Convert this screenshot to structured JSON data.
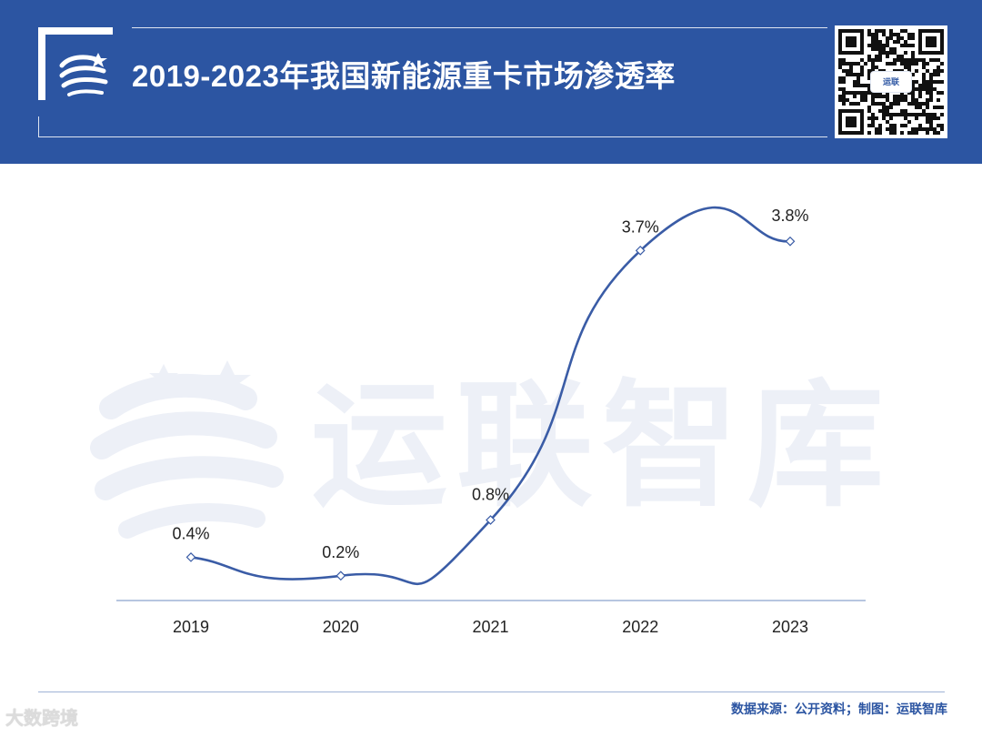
{
  "header": {
    "title": "2019-2023年我国新能源重卡市场渗透率",
    "logo_icon": "brand-swoosh-icon",
    "qr_label": "运联"
  },
  "watermark": {
    "text": "运联智库"
  },
  "footer": {
    "source": "数据来源：公开资料；制图：运联智库",
    "corner_mark": "大数跨境"
  },
  "colors": {
    "brand": "#2c55a2",
    "line": "#3a5ca6",
    "axis": "#9fb3d6"
  },
  "chart_data": {
    "type": "line",
    "title": "2019-2023年我国新能源重卡市场渗透率",
    "xlabel": "",
    "ylabel": "",
    "categories": [
      "2019",
      "2020",
      "2021",
      "2022",
      "2023"
    ],
    "values": [
      0.4,
      0.2,
      0.8,
      3.7,
      3.8
    ],
    "data_labels": [
      "0.4%",
      "0.2%",
      "0.8%",
      "3.7%",
      "3.8%"
    ],
    "unit": "%",
    "smooth": true,
    "grid": false,
    "legend": "none"
  }
}
